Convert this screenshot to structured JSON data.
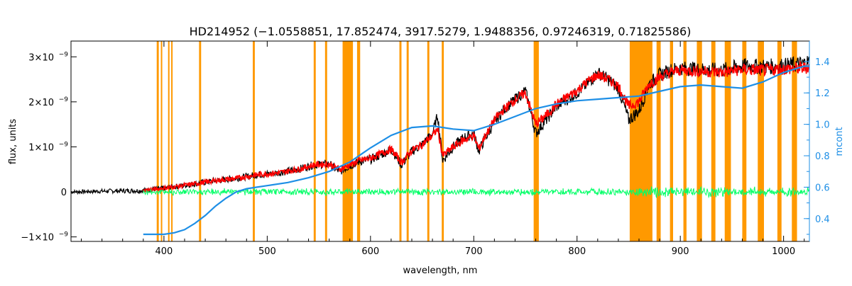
{
  "chart_data": {
    "type": "line",
    "title": "HD214952    (−1.0558851, 17.852474, 3917.5279, 1.9488356, 0.97246319, 0.71825586)",
    "xlabel": "wavelength, nm",
    "ylabel": "flux, units",
    "y2label": "mcont",
    "xlim": [
      310,
      1025
    ],
    "ylim": [
      -1.1e-09,
      3.35e-09
    ],
    "y2lim": [
      0.255,
      1.53
    ],
    "x_ticks": [
      {
        "value": 400,
        "label": "400"
      },
      {
        "value": 500,
        "label": "500"
      },
      {
        "value": 600,
        "label": "600"
      },
      {
        "value": 700,
        "label": "700"
      },
      {
        "value": 800,
        "label": "800"
      },
      {
        "value": 900,
        "label": "900"
      },
      {
        "value": 1000,
        "label": "1000"
      }
    ],
    "y_ticks": [
      {
        "value": -1e-09,
        "base": "−1×10",
        "exp": "−9"
      },
      {
        "value": 0,
        "base": "0",
        "exp": ""
      },
      {
        "value": 1e-09,
        "base": "1×10",
        "exp": "−9"
      },
      {
        "value": 2e-09,
        "base": "2×10",
        "exp": "−9"
      },
      {
        "value": 3e-09,
        "base": "3×10",
        "exp": "−9"
      }
    ],
    "y2_ticks": [
      {
        "value": 0.4,
        "label": "0.4"
      },
      {
        "value": 0.6,
        "label": "0.6"
      },
      {
        "value": 0.8,
        "label": "0.8"
      },
      {
        "value": 1.0,
        "label": "1.0"
      },
      {
        "value": 1.2,
        "label": "1.2"
      },
      {
        "value": 1.4,
        "label": "1.4"
      }
    ],
    "masked_regions": [
      [
        393,
        395
      ],
      [
        397,
        398
      ],
      [
        404,
        405
      ],
      [
        407,
        408
      ],
      [
        434,
        436
      ],
      [
        486,
        488
      ],
      [
        545,
        547
      ],
      [
        556,
        558
      ],
      [
        573,
        583
      ],
      [
        587,
        590
      ],
      [
        628,
        630
      ],
      [
        635,
        637
      ],
      [
        655,
        657
      ],
      [
        669,
        671
      ],
      [
        758,
        763
      ],
      [
        851,
        873
      ],
      [
        877,
        881
      ],
      [
        890,
        893
      ],
      [
        903,
        906
      ],
      [
        916,
        921
      ],
      [
        930,
        934
      ],
      [
        943,
        949
      ],
      [
        960,
        964
      ],
      [
        975,
        981
      ],
      [
        994,
        998
      ],
      [
        1008,
        1013
      ]
    ],
    "colors": {
      "observed": "#000000",
      "model": "#ff0000",
      "residual": "#00ff66",
      "continuum": "#1e8fe6",
      "mask": "#ff9900",
      "highlight": "#ffff00",
      "right_axis": "#1e8fe6"
    },
    "series": [
      {
        "role": "observed",
        "x": [
          310,
          350,
          380,
          400,
          430,
          450,
          470,
          490,
          510,
          530,
          545,
          560,
          570,
          580,
          590,
          600,
          610,
          620,
          630,
          640,
          650,
          660,
          665,
          670,
          680,
          690,
          700,
          705,
          710,
          720,
          730,
          740,
          750,
          760,
          770,
          780,
          790,
          800,
          810,
          820,
          830,
          840,
          850,
          860,
          870,
          880,
          890,
          900,
          920,
          940,
          960,
          980,
          1000,
          1020,
          1025
        ],
        "y": [
          0,
          2e-11,
          3e-11,
          8e-11,
          1.8e-10,
          2.5e-10,
          3e-10,
          3.8e-10,
          4.2e-10,
          5e-10,
          6e-10,
          6.2e-10,
          4.5e-10,
          5.8e-10,
          6.8e-10,
          7.2e-10,
          8.2e-10,
          9.5e-10,
          6e-10,
          9e-10,
          1.05e-09,
          1.3e-09,
          1.7e-09,
          7e-10,
          1e-09,
          1.2e-09,
          1.3e-09,
          9e-10,
          1.15e-09,
          1.55e-09,
          1.85e-09,
          2.05e-09,
          2.25e-09,
          1.3e-09,
          1.6e-09,
          1.9e-09,
          2.05e-09,
          2.2e-09,
          2.4e-09,
          2.65e-09,
          2.5e-09,
          2.3e-09,
          1.6e-09,
          1.8e-09,
          2.4e-09,
          2.6e-09,
          2.7e-09,
          2.75e-09,
          2.72e-09,
          2.7e-09,
          2.8e-09,
          2.78e-09,
          2.8e-09,
          2.85e-09,
          2.9e-09
        ]
      },
      {
        "role": "model",
        "x": [
          380,
          400,
          430,
          450,
          470,
          490,
          510,
          530,
          545,
          560,
          570,
          580,
          590,
          600,
          610,
          620,
          630,
          640,
          650,
          660,
          665,
          670,
          680,
          690,
          700,
          705,
          710,
          720,
          730,
          740,
          750,
          760,
          770,
          780,
          790,
          800,
          810,
          820,
          830,
          840,
          850,
          860,
          870,
          880,
          890,
          900,
          920,
          940,
          960,
          980,
          1000,
          1020,
          1025
        ],
        "y": [
          3e-11,
          8e-11,
          1.8e-10,
          2.5e-10,
          3e-10,
          3.8e-10,
          4.2e-10,
          5e-10,
          6e-10,
          6.2e-10,
          5e-10,
          6e-10,
          7e-10,
          7.5e-10,
          8.5e-10,
          9.5e-10,
          6.5e-10,
          9.2e-10,
          1.05e-09,
          1.25e-09,
          1.4e-09,
          8e-10,
          1e-09,
          1.15e-09,
          1.25e-09,
          9.5e-10,
          1.2e-09,
          1.6e-09,
          1.85e-09,
          2.05e-09,
          2.2e-09,
          1.5e-09,
          1.7e-09,
          1.95e-09,
          2.1e-09,
          2.25e-09,
          2.45e-09,
          2.6e-09,
          2.5e-09,
          2.35e-09,
          1.9e-09,
          2e-09,
          2.4e-09,
          2.55e-09,
          2.65e-09,
          2.7e-09,
          2.68e-09,
          2.65e-09,
          2.72e-09,
          2.7e-09,
          2.73e-09,
          2.75e-09,
          2.78e-09
        ]
      },
      {
        "role": "residual",
        "x": [
          380,
          400,
          450,
          500,
          550,
          600,
          650,
          700,
          750,
          800,
          850,
          860,
          900,
          950,
          1000,
          1025
        ],
        "y": [
          0.0,
          0.0,
          0.0,
          0.0,
          0.0,
          0.0,
          0.0,
          0.0,
          0.0,
          0.0,
          0.0,
          0.0,
          0.0,
          0.0,
          0.0,
          0.0
        ],
        "amplitude": 8e-11
      },
      {
        "role": "continuum",
        "axis": "right",
        "x": [
          380,
          390,
          400,
          410,
          420,
          430,
          440,
          450,
          460,
          470,
          480,
          490,
          500,
          520,
          540,
          560,
          580,
          600,
          620,
          640,
          660,
          680,
          700,
          720,
          740,
          760,
          780,
          800,
          820,
          840,
          860,
          880,
          900,
          920,
          940,
          960,
          980,
          1000,
          1020,
          1025
        ],
        "y": [
          0.3,
          0.3,
          0.3,
          0.31,
          0.33,
          0.37,
          0.42,
          0.48,
          0.53,
          0.57,
          0.59,
          0.6,
          0.61,
          0.63,
          0.66,
          0.7,
          0.76,
          0.85,
          0.93,
          0.98,
          0.99,
          0.97,
          0.96,
          1.0,
          1.05,
          1.1,
          1.13,
          1.15,
          1.16,
          1.17,
          1.18,
          1.21,
          1.24,
          1.25,
          1.24,
          1.23,
          1.27,
          1.33,
          1.37,
          1.37
        ]
      }
    ]
  }
}
